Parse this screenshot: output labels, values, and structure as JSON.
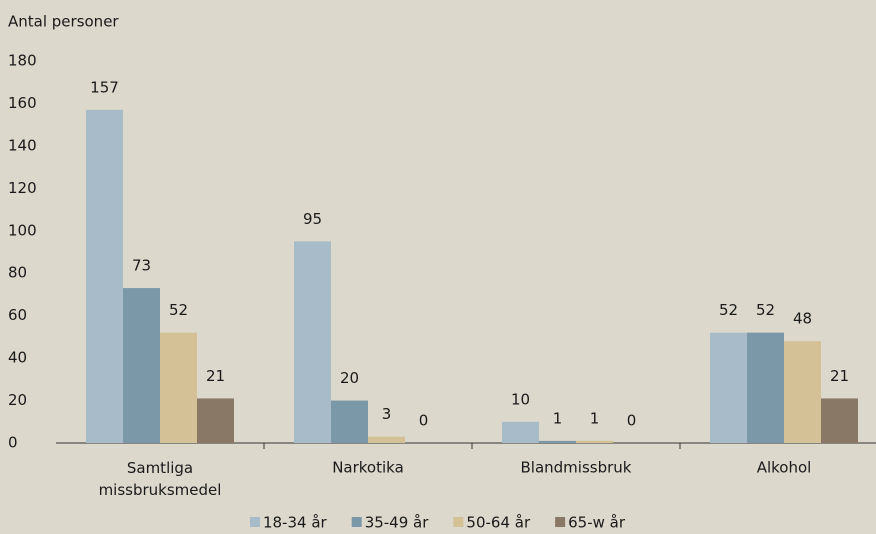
{
  "chart_data": {
    "type": "bar",
    "y_label": "Antal personer",
    "categories": [
      "Samtliga missbruksmedel",
      "Narkotika",
      "Blandmissbruk",
      "Alkohol"
    ],
    "series": [
      {
        "name": "18-34 år",
        "color": "#a7bcc8",
        "values": [
          157,
          95,
          10,
          52
        ]
      },
      {
        "name": "35-49 år",
        "color": "#7b98a8",
        "values": [
          73,
          20,
          1,
          52
        ]
      },
      {
        "name": "50-64 år",
        "color": "#d4c196",
        "values": [
          52,
          3,
          1,
          48
        ]
      },
      {
        "name": "65-w år",
        "color": "#8a7866",
        "values": [
          21,
          0,
          0,
          21
        ]
      }
    ],
    "ylim": [
      0,
      180
    ],
    "yticks": [
      0,
      20,
      40,
      60,
      80,
      100,
      120,
      140,
      160,
      180
    ],
    "grid": false,
    "legend": "bottom"
  }
}
